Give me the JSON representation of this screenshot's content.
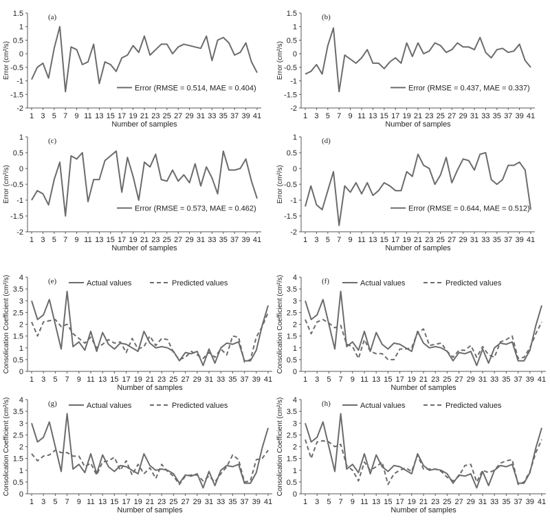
{
  "chart_data": [
    {
      "type": "line",
      "panel_label": "(a)",
      "xlabel": "Number of samples",
      "ylabel": "Error (cm²/s)",
      "ylim": [
        -2,
        1.5
      ],
      "yticks": [
        1.5,
        1,
        0.5,
        0,
        -0.5,
        -1,
        -1.5,
        -2
      ],
      "xticks": [
        1,
        3,
        5,
        7,
        9,
        11,
        13,
        15,
        17,
        19,
        21,
        23,
        25,
        27,
        29,
        31,
        33,
        35,
        37,
        39,
        41
      ],
      "legend_position": "inside-lower-right",
      "series": [
        {
          "name": "Error (RMSE = 0.514, MAE = 0.404)",
          "style": "solid",
          "values": [
            -0.95,
            -0.5,
            -0.35,
            -0.9,
            0.2,
            1.0,
            -1.4,
            0.25,
            0.15,
            -0.4,
            -0.3,
            0.35,
            -1.1,
            -0.3,
            -0.4,
            -0.65,
            -0.15,
            -0.05,
            0.3,
            0.05,
            0.65,
            -0.05,
            0.15,
            0.35,
            0.35,
            0.0,
            0.25,
            0.35,
            0.3,
            0.25,
            0.2,
            0.65,
            -0.25,
            0.5,
            0.6,
            0.4,
            -0.05,
            0.05,
            0.4,
            -0.3,
            -0.7
          ]
        }
      ]
    },
    {
      "type": "line",
      "panel_label": "(b)",
      "xlabel": "Number of samples",
      "ylabel": "Error (cm²/s)",
      "ylim": [
        -2,
        1.5
      ],
      "yticks": [
        1.5,
        1,
        0.5,
        0,
        -0.5,
        -1,
        -1.5,
        -2
      ],
      "xticks": [
        1,
        3,
        5,
        7,
        9,
        11,
        13,
        15,
        17,
        19,
        21,
        23,
        25,
        27,
        29,
        31,
        33,
        35,
        37,
        39,
        41
      ],
      "legend_position": "inside-lower-right",
      "series": [
        {
          "name": "Error (RMSE = 0.437, MAE = 0.337)",
          "style": "solid",
          "values": [
            -0.75,
            -0.65,
            -0.4,
            -0.75,
            0.3,
            0.95,
            -1.4,
            -0.05,
            -0.2,
            -0.35,
            -0.15,
            0.15,
            -0.35,
            -0.35,
            -0.55,
            -0.3,
            -0.15,
            -0.35,
            0.4,
            -0.1,
            0.4,
            0.0,
            0.1,
            0.4,
            0.3,
            0.05,
            0.15,
            0.4,
            0.25,
            0.25,
            0.15,
            0.6,
            0.05,
            -0.15,
            0.15,
            0.2,
            0.05,
            0.1,
            0.35,
            -0.25,
            -0.5
          ]
        }
      ]
    },
    {
      "type": "line",
      "panel_label": "(c)",
      "xlabel": "Number of samples",
      "ylabel": "Error (cm²/s)",
      "ylim": [
        -2,
        1
      ],
      "yticks": [
        1,
        0.5,
        0,
        -0.5,
        -1,
        -1.5,
        -2
      ],
      "xticks": [
        1,
        3,
        5,
        7,
        9,
        11,
        13,
        15,
        17,
        19,
        21,
        23,
        25,
        27,
        29,
        31,
        33,
        35,
        37,
        39,
        41
      ],
      "legend_position": "inside-lower-right",
      "series": [
        {
          "name": "Error (RMSE = 0.573, MAE = 0.462)",
          "style": "solid",
          "values": [
            -1.0,
            -0.7,
            -0.8,
            -1.15,
            -0.35,
            0.2,
            -1.5,
            0.4,
            0.3,
            0.5,
            -1.05,
            -0.35,
            -0.35,
            0.25,
            0.4,
            0.55,
            -0.75,
            0.35,
            -0.25,
            -1.0,
            0.2,
            0.05,
            0.45,
            -0.35,
            -0.4,
            -0.05,
            -0.4,
            -0.2,
            -0.45,
            0.15,
            -0.55,
            0.05,
            -0.3,
            -0.8,
            0.55,
            -0.05,
            -0.05,
            0.0,
            0.3,
            -0.4,
            -0.95
          ]
        }
      ]
    },
    {
      "type": "line",
      "panel_label": "(d)",
      "xlabel": "Number of samples",
      "ylabel": "Error (cm²/s)",
      "ylim": [
        -2,
        1
      ],
      "yticks": [
        1,
        0.5,
        0,
        -0.5,
        -1,
        -1.5,
        -2
      ],
      "xticks": [
        1,
        3,
        5,
        7,
        9,
        11,
        13,
        15,
        17,
        19,
        21,
        23,
        25,
        27,
        29,
        31,
        33,
        35,
        37,
        39,
        41
      ],
      "legend_position": "inside-lower-right",
      "series": [
        {
          "name": "Error (RMSE = 0.644, MAE = 0.512)",
          "style": "solid",
          "values": [
            -1.2,
            -0.55,
            -1.15,
            -1.3,
            -0.7,
            -0.1,
            -1.8,
            -0.55,
            -0.75,
            -0.45,
            -0.8,
            -0.45,
            -0.85,
            -0.7,
            -0.45,
            -0.55,
            -0.7,
            -0.7,
            -0.1,
            -0.25,
            0.45,
            0.1,
            0.0,
            -0.5,
            -0.2,
            0.35,
            -0.45,
            -0.05,
            0.3,
            0.25,
            -0.05,
            0.45,
            0.5,
            -0.35,
            -0.5,
            -0.35,
            0.1,
            0.1,
            0.2,
            -0.05,
            -1.3
          ]
        }
      ]
    },
    {
      "type": "line",
      "panel_label": "(e)",
      "xlabel": "Number of samples",
      "ylabel": "Consolication Coefficient (cm²/s)",
      "ylim": [
        0,
        4
      ],
      "yticks": [
        4,
        3.5,
        3,
        2.5,
        2,
        1.5,
        1,
        0.5,
        0
      ],
      "xticks": [
        1,
        3,
        5,
        7,
        9,
        11,
        13,
        15,
        17,
        19,
        21,
        23,
        25,
        27,
        29,
        31,
        33,
        35,
        37,
        39,
        41
      ],
      "legend_position": "top",
      "series": [
        {
          "name": "Actual values",
          "style": "solid",
          "values": [
            3.0,
            2.2,
            2.4,
            3.05,
            2.0,
            0.95,
            3.4,
            1.05,
            1.25,
            0.9,
            1.7,
            0.85,
            1.65,
            1.15,
            0.95,
            1.2,
            1.15,
            1.0,
            0.85,
            1.7,
            1.2,
            1.0,
            1.05,
            1.0,
            0.85,
            0.45,
            0.8,
            0.75,
            0.85,
            0.25,
            0.95,
            0.35,
            1.0,
            1.2,
            1.15,
            1.25,
            0.45,
            0.45,
            0.9,
            1.95,
            2.8
          ]
        },
        {
          "name": "Predicted values",
          "style": "dashed",
          "values": [
            2.1,
            1.5,
            2.1,
            2.15,
            2.2,
            1.9,
            2.0,
            1.6,
            1.4,
            1.2,
            1.45,
            1.0,
            1.15,
            1.35,
            1.2,
            1.25,
            0.8,
            1.4,
            0.95,
            1.05,
            1.5,
            1.1,
            1.4,
            1.35,
            0.8,
            0.5,
            0.6,
            0.85,
            0.7,
            0.55,
            0.8,
            0.6,
            0.95,
            0.7,
            1.5,
            1.45,
            0.4,
            0.5,
            1.45,
            1.9,
            2.5
          ]
        }
      ]
    },
    {
      "type": "line",
      "panel_label": "(f)",
      "xlabel": "Number of samples",
      "ylabel": "Consolication Coefficient (cm²/s)",
      "ylim": [
        0,
        4
      ],
      "yticks": [
        4,
        3.5,
        3,
        2.5,
        2,
        1.5,
        1,
        0.5,
        0
      ],
      "xticks": [
        1,
        3,
        5,
        7,
        9,
        11,
        13,
        15,
        17,
        19,
        21,
        23,
        25,
        27,
        29,
        31,
        33,
        35,
        37,
        39,
        41
      ],
      "legend_position": "top",
      "series": [
        {
          "name": "Actual values",
          "style": "solid",
          "values": [
            3.0,
            2.2,
            2.4,
            3.05,
            2.0,
            0.95,
            3.4,
            1.05,
            1.25,
            0.9,
            1.7,
            0.85,
            1.65,
            1.15,
            0.95,
            1.2,
            1.15,
            1.0,
            0.85,
            1.7,
            1.2,
            1.0,
            1.05,
            1.0,
            0.85,
            0.45,
            0.8,
            0.75,
            0.85,
            0.25,
            0.95,
            0.35,
            1.0,
            1.2,
            1.15,
            1.25,
            0.45,
            0.45,
            0.9,
            1.95,
            2.8
          ]
        },
        {
          "name": "Predicted values",
          "style": "dashed",
          "values": [
            2.2,
            1.6,
            2.1,
            2.2,
            2.05,
            1.85,
            1.95,
            1.15,
            1.05,
            0.55,
            1.35,
            0.85,
            0.75,
            0.75,
            0.5,
            0.5,
            0.95,
            0.95,
            1.0,
            1.65,
            1.8,
            1.1,
            1.15,
            1.2,
            0.85,
            0.6,
            0.9,
            0.9,
            1.1,
            0.6,
            1.05,
            0.7,
            0.6,
            1.25,
            1.35,
            1.5,
            0.55,
            0.6,
            1.0,
            1.6,
            2.1
          ]
        }
      ]
    },
    {
      "type": "line",
      "panel_label": "(g)",
      "xlabel": "Number of samples",
      "ylabel": "Consolication Coefficient (cm²/s)",
      "ylim": [
        0,
        4
      ],
      "yticks": [
        4,
        3.5,
        3,
        2.5,
        2,
        1.5,
        1,
        0.5,
        0
      ],
      "xticks": [
        1,
        3,
        5,
        7,
        9,
        11,
        13,
        15,
        17,
        19,
        21,
        23,
        25,
        27,
        29,
        31,
        33,
        35,
        37,
        39,
        41
      ],
      "legend_position": "top",
      "series": [
        {
          "name": "Actual values",
          "style": "solid",
          "values": [
            3.0,
            2.2,
            2.4,
            3.05,
            2.0,
            0.95,
            3.4,
            1.05,
            1.25,
            0.9,
            1.7,
            0.85,
            1.65,
            1.15,
            0.95,
            1.2,
            1.15,
            1.0,
            0.85,
            1.7,
            1.2,
            1.0,
            1.05,
            1.0,
            0.85,
            0.45,
            0.8,
            0.75,
            0.85,
            0.25,
            0.95,
            0.35,
            1.0,
            1.2,
            1.15,
            1.25,
            0.45,
            0.45,
            0.9,
            1.95,
            2.8
          ]
        },
        {
          "name": "Predicted values",
          "style": "dashed",
          "values": [
            1.7,
            1.4,
            1.6,
            1.65,
            1.85,
            1.75,
            1.75,
            1.6,
            1.6,
            1.15,
            1.3,
            0.8,
            1.35,
            1.4,
            1.55,
            1.0,
            1.4,
            0.8,
            1.25,
            0.85,
            1.1,
            0.65,
            1.25,
            0.95,
            0.75,
            0.4,
            0.75,
            0.8,
            0.8,
            0.55,
            0.75,
            0.5,
            0.85,
            1.15,
            1.65,
            1.45,
            0.5,
            0.55,
            1.45,
            1.5,
            1.85
          ]
        }
      ]
    },
    {
      "type": "line",
      "panel_label": "(h)",
      "xlabel": "Number of samples",
      "ylabel": "Consolication Coefficient (cm²/s)",
      "ylim": [
        0,
        4
      ],
      "yticks": [
        4,
        3.5,
        3,
        2.5,
        2,
        1.5,
        1,
        0.5,
        0
      ],
      "xticks": [
        1,
        3,
        5,
        7,
        9,
        11,
        13,
        15,
        17,
        19,
        21,
        23,
        25,
        27,
        29,
        31,
        33,
        35,
        37,
        39,
        41
      ],
      "legend_position": "top",
      "series": [
        {
          "name": "Actual values",
          "style": "solid",
          "values": [
            3.0,
            2.2,
            2.4,
            3.05,
            2.0,
            0.95,
            3.4,
            1.05,
            1.25,
            0.9,
            1.7,
            0.85,
            1.65,
            1.15,
            0.95,
            1.2,
            1.15,
            1.0,
            0.85,
            1.7,
            1.2,
            1.0,
            1.05,
            1.0,
            0.85,
            0.45,
            0.8,
            0.75,
            0.85,
            0.25,
            0.95,
            0.35,
            1.0,
            1.2,
            1.15,
            1.25,
            0.45,
            0.45,
            0.9,
            1.95,
            2.8
          ]
        },
        {
          "name": "Predicted values",
          "style": "dashed",
          "values": [
            2.3,
            1.5,
            2.2,
            2.25,
            2.2,
            2.0,
            2.1,
            1.2,
            1.0,
            0.55,
            1.35,
            1.0,
            1.15,
            1.35,
            0.4,
            0.85,
            1.0,
            1.1,
            0.95,
            1.65,
            1.05,
            1.05,
            1.05,
            0.95,
            0.7,
            0.55,
            0.75,
            1.2,
            1.25,
            0.5,
            1.0,
            0.9,
            1.0,
            1.3,
            1.4,
            1.45,
            0.4,
            0.5,
            0.95,
            1.75,
            2.3
          ]
        }
      ]
    }
  ],
  "colors": {
    "line": "#6b6b6b",
    "axis": "#555555",
    "background": "#ffffff"
  }
}
